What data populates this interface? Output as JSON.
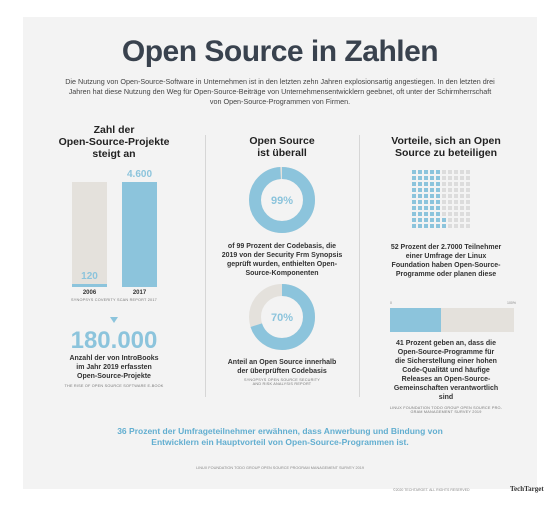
{
  "title": "Open Source in Zahlen",
  "intro": "Die Nutzung von Open-Source-Software in Unternehmen ist in den letzten zehn Jahren explosionsartig angestiegen. In den letzten drei Jahren hat diese Nutzung den Weg für Open-Source-Beiträge von Unternehmensentwicklern geebnet, oft unter der Schirmherrschaft von Open-Source-Programmen von Firmen.",
  "col1": {
    "heading_line1": "Zahl der",
    "heading_line2": "Open-Source-Projekte",
    "heading_line3": "steigt an",
    "source": "SYNOPSYS COVERITY SCAN REPORT 2017",
    "big_number": "180.000",
    "big_text_line1": "Anzahl der von IntroBooks",
    "big_text_line2": "im Jahr 2019 erfassten",
    "big_text_line3": "Open-Source-Projekte",
    "big_source": "THE RISE OF OPEN SOURCE SOFTWARE E-BOOK"
  },
  "col2": {
    "heading_line1": "Open Source",
    "heading_line2": "ist überall",
    "text1_line1": "of 99 Prozent der Codebasis, die",
    "text1_line2": "2019 von der Security Frm Synopsis",
    "text1_line3": "geprüft wurden, enthielten Open-",
    "text1_line4": "Source-Komponenten",
    "text2_line1": "Anteil an Open Source innerhalb",
    "text2_line2": "der überprüften Codebasis",
    "source_line1": "SYNOPSYS OPEN SOURCE SECURITY",
    "source_line2": "AND RISK ANALYSIS REPORT"
  },
  "col3": {
    "heading_line1": "Vorteile, sich an Open",
    "heading_line2": "Source zu beteiligen",
    "text1_bold": "52 Prozent",
    "text1_line1": " der 2.7000 Teilnehmer",
    "text1_line2": "einer Umfrage der Linux",
    "text1_line3": "Foundation haben Open-Source-",
    "text1_line4": "Programme oder planen diese",
    "text2_bold": "41 Prozent",
    "text2_line1": " geben an, dass die",
    "text2_line2": "Open-Source-Programme für",
    "text2_line3": "die Sicherstellung einer hohen",
    "text2_line4": "Code-Qualität und häufige",
    "text2_line5": "Releases an Open-Source-",
    "text2_line6": "Gemeinschaften verantwortlich",
    "text2_line7": "sind",
    "source_line1": "LINUX FOUNDATION TODO GROUP OPEN SOURCE PRO-",
    "source_line2": "GRAM MANAGEMENT SURVEY 2019"
  },
  "bottom": {
    "line1": "36 Prozent der Umfrageteilnehmer erwähnen, dass Anwerbung und Bindung von",
    "line2": "Entwicklern ein Hauptvorteil von Open-Source-Programmen ist.",
    "source": "LINUX FOUNDATION TODO GROUP OPEN SOURCE PROGRAM MANAGEMENT SURVEY 2019"
  },
  "copyright": "©2020 TECHTARGET. ALL RIGHTS RESERVED",
  "logo": "TechTarget",
  "colors": {
    "accent": "#8cc4dc",
    "bar_bg": "#e4e1dc",
    "bottom_text": "#62aed0"
  },
  "chart_data": [
    {
      "type": "bar",
      "categories": [
        "2006",
        "2017"
      ],
      "values": [
        120,
        4600
      ],
      "value_labels": [
        "120",
        "4.600"
      ],
      "title": "Zahl der Open-Source-Projekte steigt an",
      "ylim": [
        0,
        4600
      ]
    },
    {
      "type": "pie",
      "values": [
        99,
        1
      ],
      "label": "99%"
    },
    {
      "type": "pie",
      "values": [
        70,
        30
      ],
      "label": "70%"
    },
    {
      "type": "waffle",
      "filled_percent": 52,
      "total": 100
    },
    {
      "type": "bar",
      "orientation": "horizontal",
      "value_percent": 41,
      "tick_labels": [
        "0",
        "100%"
      ]
    }
  ]
}
